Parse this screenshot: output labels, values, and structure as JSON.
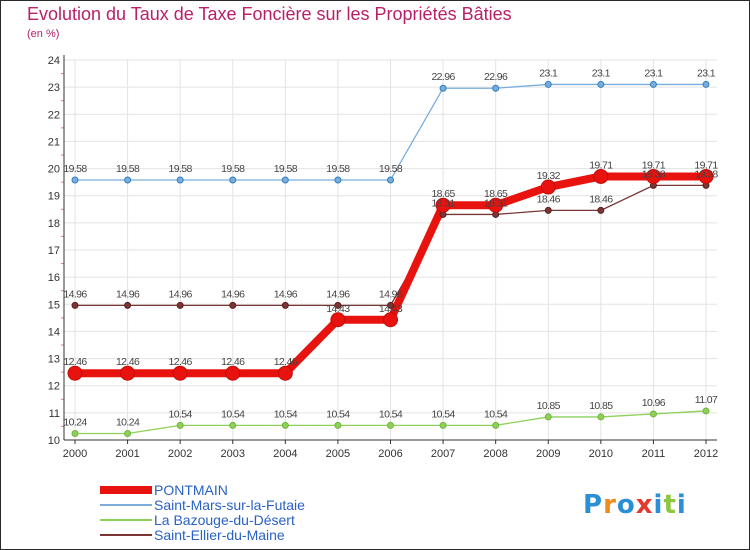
{
  "chart_data": {
    "type": "line",
    "title": "Evolution du Taux de Taxe Foncière sur les Propriétés Bâties",
    "ylabel": "(en %)",
    "categories": [
      "2000",
      "2001",
      "2002",
      "2003",
      "2004",
      "2005",
      "2006",
      "2007",
      "2008",
      "2009",
      "2010",
      "2011",
      "2012"
    ],
    "ylim": [
      10,
      24
    ],
    "yticks": [
      10,
      11,
      12,
      13,
      14,
      15,
      16,
      17,
      18,
      19,
      20,
      21,
      22,
      23,
      24
    ],
    "grid": true,
    "legend_placement": "bottom-left",
    "series": [
      {
        "name": "PONTMAIN",
        "color": "#e8130f",
        "values": [
          12.46,
          12.46,
          12.46,
          12.46,
          12.46,
          14.43,
          14.43,
          18.65,
          18.65,
          19.32,
          19.71,
          19.71,
          19.71
        ],
        "labels": [
          "12.46",
          "12.46",
          "12.46",
          "12.46",
          "12.46",
          "14.43",
          "14.43",
          "18.65",
          "18.65",
          "19.32",
          "19.71",
          "19.71",
          "19.71"
        ]
      },
      {
        "name": "Saint-Mars-sur-la-Futaie",
        "color": "#7aaddc",
        "values": [
          19.58,
          19.58,
          19.58,
          19.58,
          19.58,
          19.58,
          19.58,
          22.96,
          22.96,
          23.1,
          23.1,
          23.1,
          23.1
        ],
        "labels": [
          "19.58",
          "19.58",
          "19.58",
          "19.58",
          "19.58",
          "19.58",
          "19.58",
          "22.96",
          "22.96",
          "23.1",
          "23.1",
          "23.1",
          "23.1"
        ]
      },
      {
        "name": "La Bazouge-du-Désert",
        "color": "#8ed05a",
        "values": [
          10.24,
          10.24,
          10.54,
          10.54,
          10.54,
          10.54,
          10.54,
          10.54,
          10.54,
          10.85,
          10.85,
          10.96,
          11.07
        ],
        "labels": [
          "10.24",
          "10.24",
          "10.54",
          "10.54",
          "10.54",
          "10.54",
          "10.54",
          "10.54",
          "10.54",
          "10.85",
          "10.85",
          "10.96",
          "11.07"
        ]
      },
      {
        "name": "Saint-Ellier-du-Maine",
        "color": "#7a3535",
        "values": [
          14.96,
          14.96,
          14.96,
          14.96,
          14.96,
          14.96,
          14.96,
          18.31,
          18.31,
          18.46,
          18.46,
          19.38,
          19.38
        ],
        "labels": [
          "14.96",
          "14.96",
          "14.96",
          "14.96",
          "14.96",
          "14.96",
          "14.96",
          "18.31",
          "18.31",
          "18.46",
          "18.46",
          "19.38",
          "19.38"
        ]
      }
    ]
  },
  "logo": {
    "letters": [
      "P",
      "r",
      "o",
      "x",
      "i",
      "t",
      "i"
    ],
    "colors": [
      "#2b8fd6",
      "#f08a1a",
      "#2b8fd6",
      "#e23a2e",
      "#2b8fd6",
      "#8fc63f",
      "#2b8fd6"
    ]
  }
}
